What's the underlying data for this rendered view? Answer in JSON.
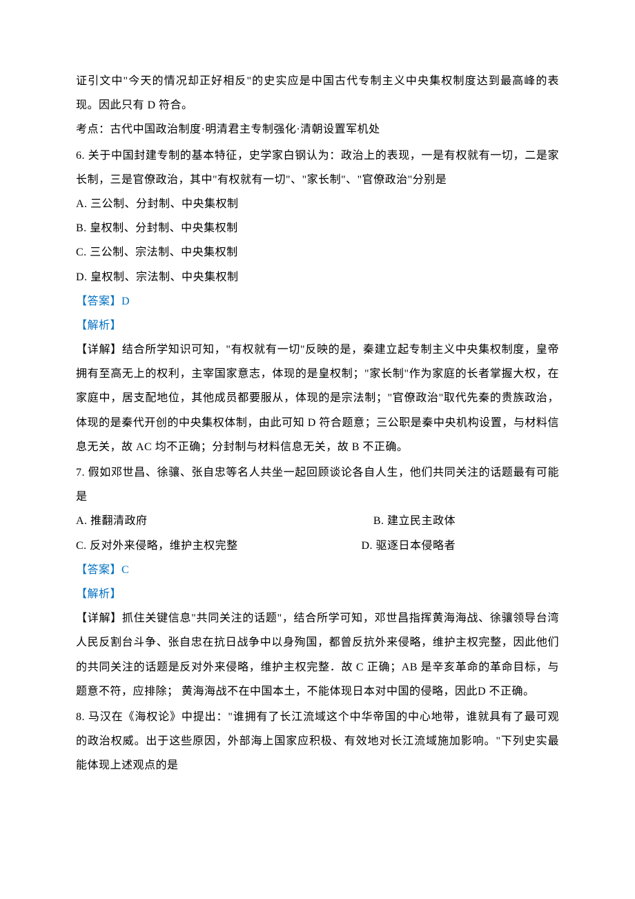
{
  "colors": {
    "text_black": "#000000",
    "text_blue": "#0070c0",
    "background": "#ffffff"
  },
  "typography": {
    "font_family": "SimSun",
    "font_size": 16,
    "line_height": 2.2
  },
  "intro": {
    "line1": "证引文中\"今天的情况却正好相反\"的史实应是中国古代专制主义中央集权制度达到最高峰的表现。因此只有 D 符合。",
    "line2": "考点：古代中国政治制度·明清君主专制强化·清朝设置军机处"
  },
  "q6": {
    "stem": "6. 关于中国封建专制的基本特征，史学家白钢认为：政治上的表现，一是有权就有一切，二是家长制，三是官僚政治，其中\"有权就有一切\"、\"家长制\"、\"官僚政治\"分别是",
    "optA": "A. 三公制、分封制、中央集权制",
    "optB": "B. 皇权制、分封制、中央集权制",
    "optC": "C. 三公制、宗法制、中央集权制",
    "optD": "D. 皇权制、宗法制、中央集权制",
    "answer": "【答案】D",
    "analysis_label": "【解析】",
    "analysis": "【详解】结合所学知识可知，\"有权就有一切\"反映的是，秦建立起专制主义中央集权制度，皇帝拥有至高无上的权利，主宰国家意志，体现的是皇权制；\"家长制\"作为家庭的长者掌握大权，在家庭中，居支配地位，其他成员都要服从，体现的是宗法制；\"官僚政治\"取代先秦的贵族政治，体现的是秦代开创的中央集权体制，由此可知 D 符合题意；三公职是秦中央机构设置，与材料信息无关，故 AC 均不正确；分封制与材料信息无关，故 B 不正确。"
  },
  "q7": {
    "stem": "7. 假如邓世昌、徐骧、张自忠等名人共坐一起回顾谈论各自人生，他们共同关注的话题最有可能是",
    "optA": "A. 推翻清政府",
    "optB": "B. 建立民主政体",
    "optC": "C. 反对外来侵略，维护主权完整",
    "optD": "D. 驱逐日本侵略者",
    "answer": "【答案】C",
    "analysis_label": "【解析】",
    "analysis": "【详解】抓住关键信息\"共同关注的话题\"，结合所学可知，邓世昌指挥黄海海战、徐骧领导台湾人民反割台斗争、张自忠在抗日战争中以身殉国，都曾反抗外来侵略，维护主权完整，因此他们的共同关注的话题是反对外来侵略，维护主权完整．故 C 正确；AB 是辛亥革命的革命目标，与题意不符，应排除； 黄海海战不在中国本土，不能体现日本对中国的侵略，因此D 不正确。"
  },
  "q8": {
    "stem": "8. 马汉在《海权论》中提出：\"谁拥有了长江流域这个中华帝国的中心地带，谁就具有了最可观的政治权威。出于这些原因，外部海上国家应积极、有效地对长江流域施加影响。\"下列史实最能体现上述观点的是"
  }
}
